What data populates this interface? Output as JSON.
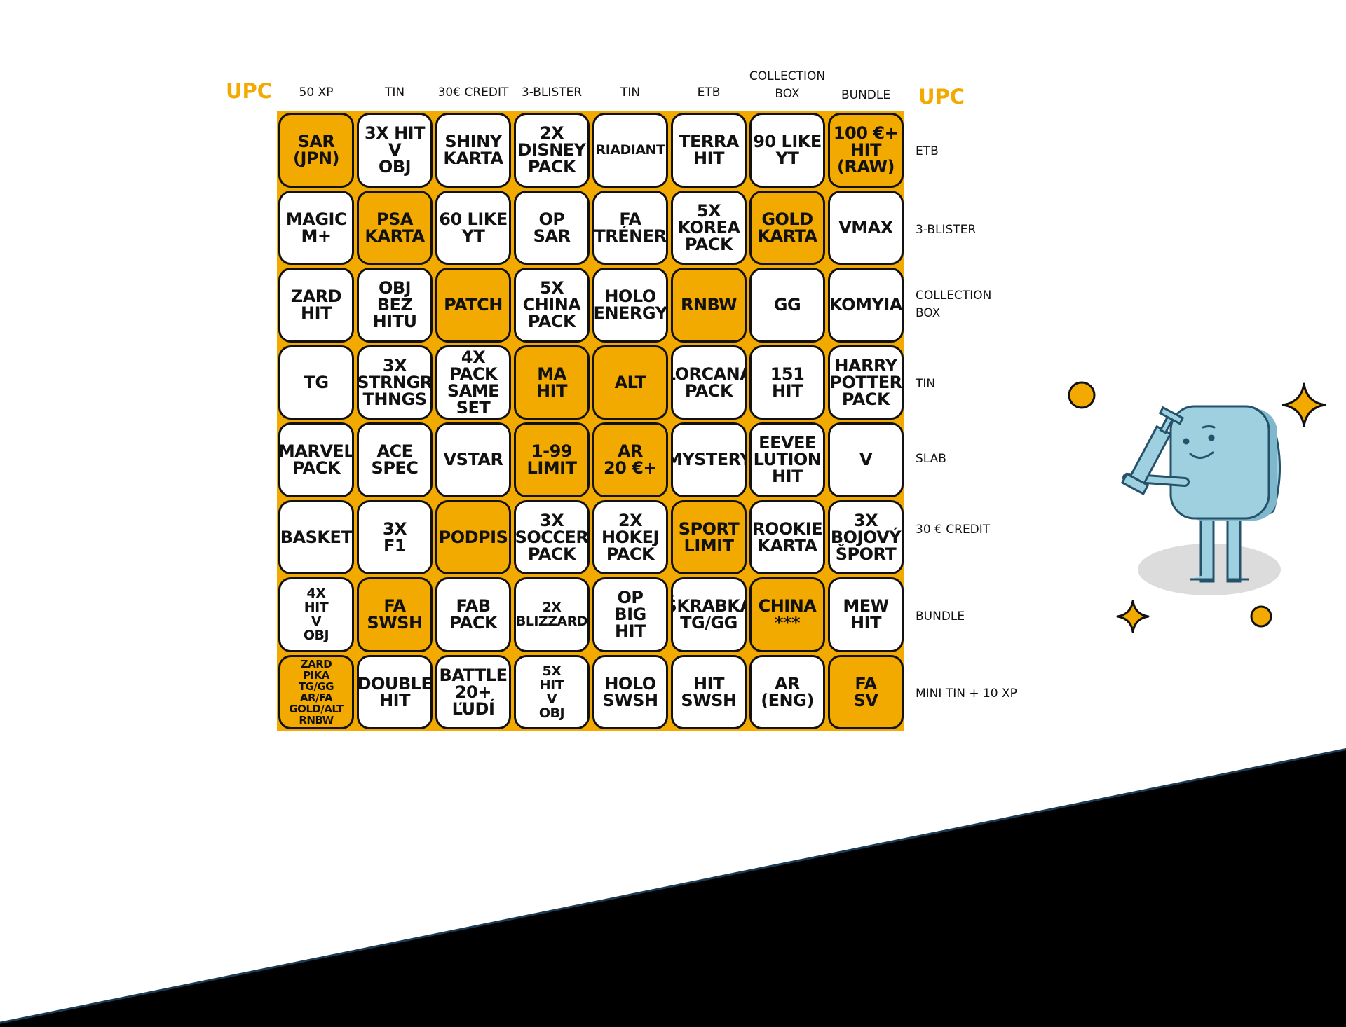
{
  "corner_left": "UPC",
  "corner_right": "UPC",
  "column_headers": [
    "50 XP",
    "TIN",
    "30€ CREDIT",
    "3-BLISTER",
    "TIN",
    "ETB",
    "COLLECTION\nBOX",
    "BUNDLE"
  ],
  "row_headers": [
    "ETB",
    "3-BLISTER",
    "COLLECTION\nBOX",
    "TIN",
    "SLAB",
    "30 € CREDIT",
    "BUNDLE",
    "MINI TIN + 10 XP"
  ],
  "board": [
    [
      {
        "text": "SAR\n(JPN)",
        "highlighted": true
      },
      {
        "text": "3X HIT\nV\nOBJ",
        "highlighted": false
      },
      {
        "text": "SHINY\nKARTA",
        "highlighted": false
      },
      {
        "text": "2X\nDISNEY\nPACK",
        "highlighted": false
      },
      {
        "text": "RIADIANT",
        "highlighted": false
      },
      {
        "text": "TERRA\nHIT",
        "highlighted": false
      },
      {
        "text": "90 LIKE\nYT",
        "highlighted": false
      },
      {
        "text": "100 €+\nHIT\n(RAW)",
        "highlighted": true
      }
    ],
    [
      {
        "text": "MAGIC\nM+",
        "highlighted": false
      },
      {
        "text": "PSA\nKARTA",
        "highlighted": true
      },
      {
        "text": "60 LIKE\nYT",
        "highlighted": false
      },
      {
        "text": "OP\nSAR",
        "highlighted": false
      },
      {
        "text": "FA\nTRÉNER",
        "highlighted": false
      },
      {
        "text": "5X\nKOREA\nPACK",
        "highlighted": false
      },
      {
        "text": "GOLD\nKARTA",
        "highlighted": true
      },
      {
        "text": "VMAX",
        "highlighted": false
      }
    ],
    [
      {
        "text": "ZARD\nHIT",
        "highlighted": false
      },
      {
        "text": "OBJ\nBEZ\nHITU",
        "highlighted": false
      },
      {
        "text": "PATCH",
        "highlighted": true
      },
      {
        "text": "5X\nCHINA\nPACK",
        "highlighted": false
      },
      {
        "text": "HOLO\nENERGY",
        "highlighted": false
      },
      {
        "text": "RNBW",
        "highlighted": true
      },
      {
        "text": "GG",
        "highlighted": false
      },
      {
        "text": "KOMYIA",
        "highlighted": false
      }
    ],
    [
      {
        "text": "TG",
        "highlighted": false
      },
      {
        "text": "3X\nSTRNGR\nTHNGS",
        "highlighted": false
      },
      {
        "text": "4X PACK\nSAME\nSET",
        "highlighted": false
      },
      {
        "text": "MA\nHIT",
        "highlighted": true
      },
      {
        "text": "ALT",
        "highlighted": true
      },
      {
        "text": "LORCANA\nPACK",
        "highlighted": false
      },
      {
        "text": "151\nHIT",
        "highlighted": false
      },
      {
        "text": "HARRY\nPOTTER\nPACK",
        "highlighted": false
      }
    ],
    [
      {
        "text": "MARVEL\nPACK",
        "highlighted": false
      },
      {
        "text": "ACE\nSPEC",
        "highlighted": false
      },
      {
        "text": "VSTAR",
        "highlighted": false
      },
      {
        "text": "1-99\nLIMIT",
        "highlighted": true
      },
      {
        "text": "AR\n20 €+",
        "highlighted": true
      },
      {
        "text": "MYSTERY",
        "highlighted": false
      },
      {
        "text": "EEVEE\nLUTION\nHIT",
        "highlighted": false
      },
      {
        "text": "V",
        "highlighted": false
      }
    ],
    [
      {
        "text": "BASKET",
        "highlighted": false
      },
      {
        "text": "3X\nF1",
        "highlighted": false
      },
      {
        "text": "PODPIS",
        "highlighted": true
      },
      {
        "text": "3X\nSOCCER\nPACK",
        "highlighted": false
      },
      {
        "text": "2X\nHOKEJ\nPACK",
        "highlighted": false
      },
      {
        "text": "SPORT\nLIMIT",
        "highlighted": true
      },
      {
        "text": "ROOKIE\nKARTA",
        "highlighted": false
      },
      {
        "text": "3X\nBOJOVÝ\nŠPORT",
        "highlighted": false
      }
    ],
    [
      {
        "text": "4X\nHIT\nV\nOBJ",
        "highlighted": false
      },
      {
        "text": "FA\nSWSH",
        "highlighted": true
      },
      {
        "text": "FAB\nPACK",
        "highlighted": false
      },
      {
        "text": "2X\nBLIZZARD",
        "highlighted": false
      },
      {
        "text": "OP\nBIG\nHIT",
        "highlighted": false
      },
      {
        "text": "ŠKRABKA\nTG/GG",
        "highlighted": false
      },
      {
        "text": "CHINA\n***",
        "highlighted": true
      },
      {
        "text": "MEW\nHIT",
        "highlighted": false
      }
    ],
    [
      {
        "text": "ZARD\nPIKA\nTG/GG\nAR/FA\nGOLD/ALT\nRNBW",
        "highlighted": true
      },
      {
        "text": "DOUBLE\nHIT",
        "highlighted": false
      },
      {
        "text": "BATTLE\n20+\nĽUDÍ",
        "highlighted": false
      },
      {
        "text": "5X\nHIT\nV\nOBJ",
        "highlighted": false
      },
      {
        "text": "HOLO\nSWSH",
        "highlighted": false
      },
      {
        "text": "HIT\nSWSH",
        "highlighted": false
      },
      {
        "text": "AR\n(ENG)",
        "highlighted": false
      },
      {
        "text": "FA\nSV",
        "highlighted": true
      }
    ]
  ],
  "colors": {
    "highlight": "#f2a900",
    "cell": "#ffffff",
    "border": "#111111",
    "mascot": "#9fd0e0"
  },
  "icons": [
    "sparkle-icon",
    "dot-icon",
    "robot-mascot-icon"
  ]
}
